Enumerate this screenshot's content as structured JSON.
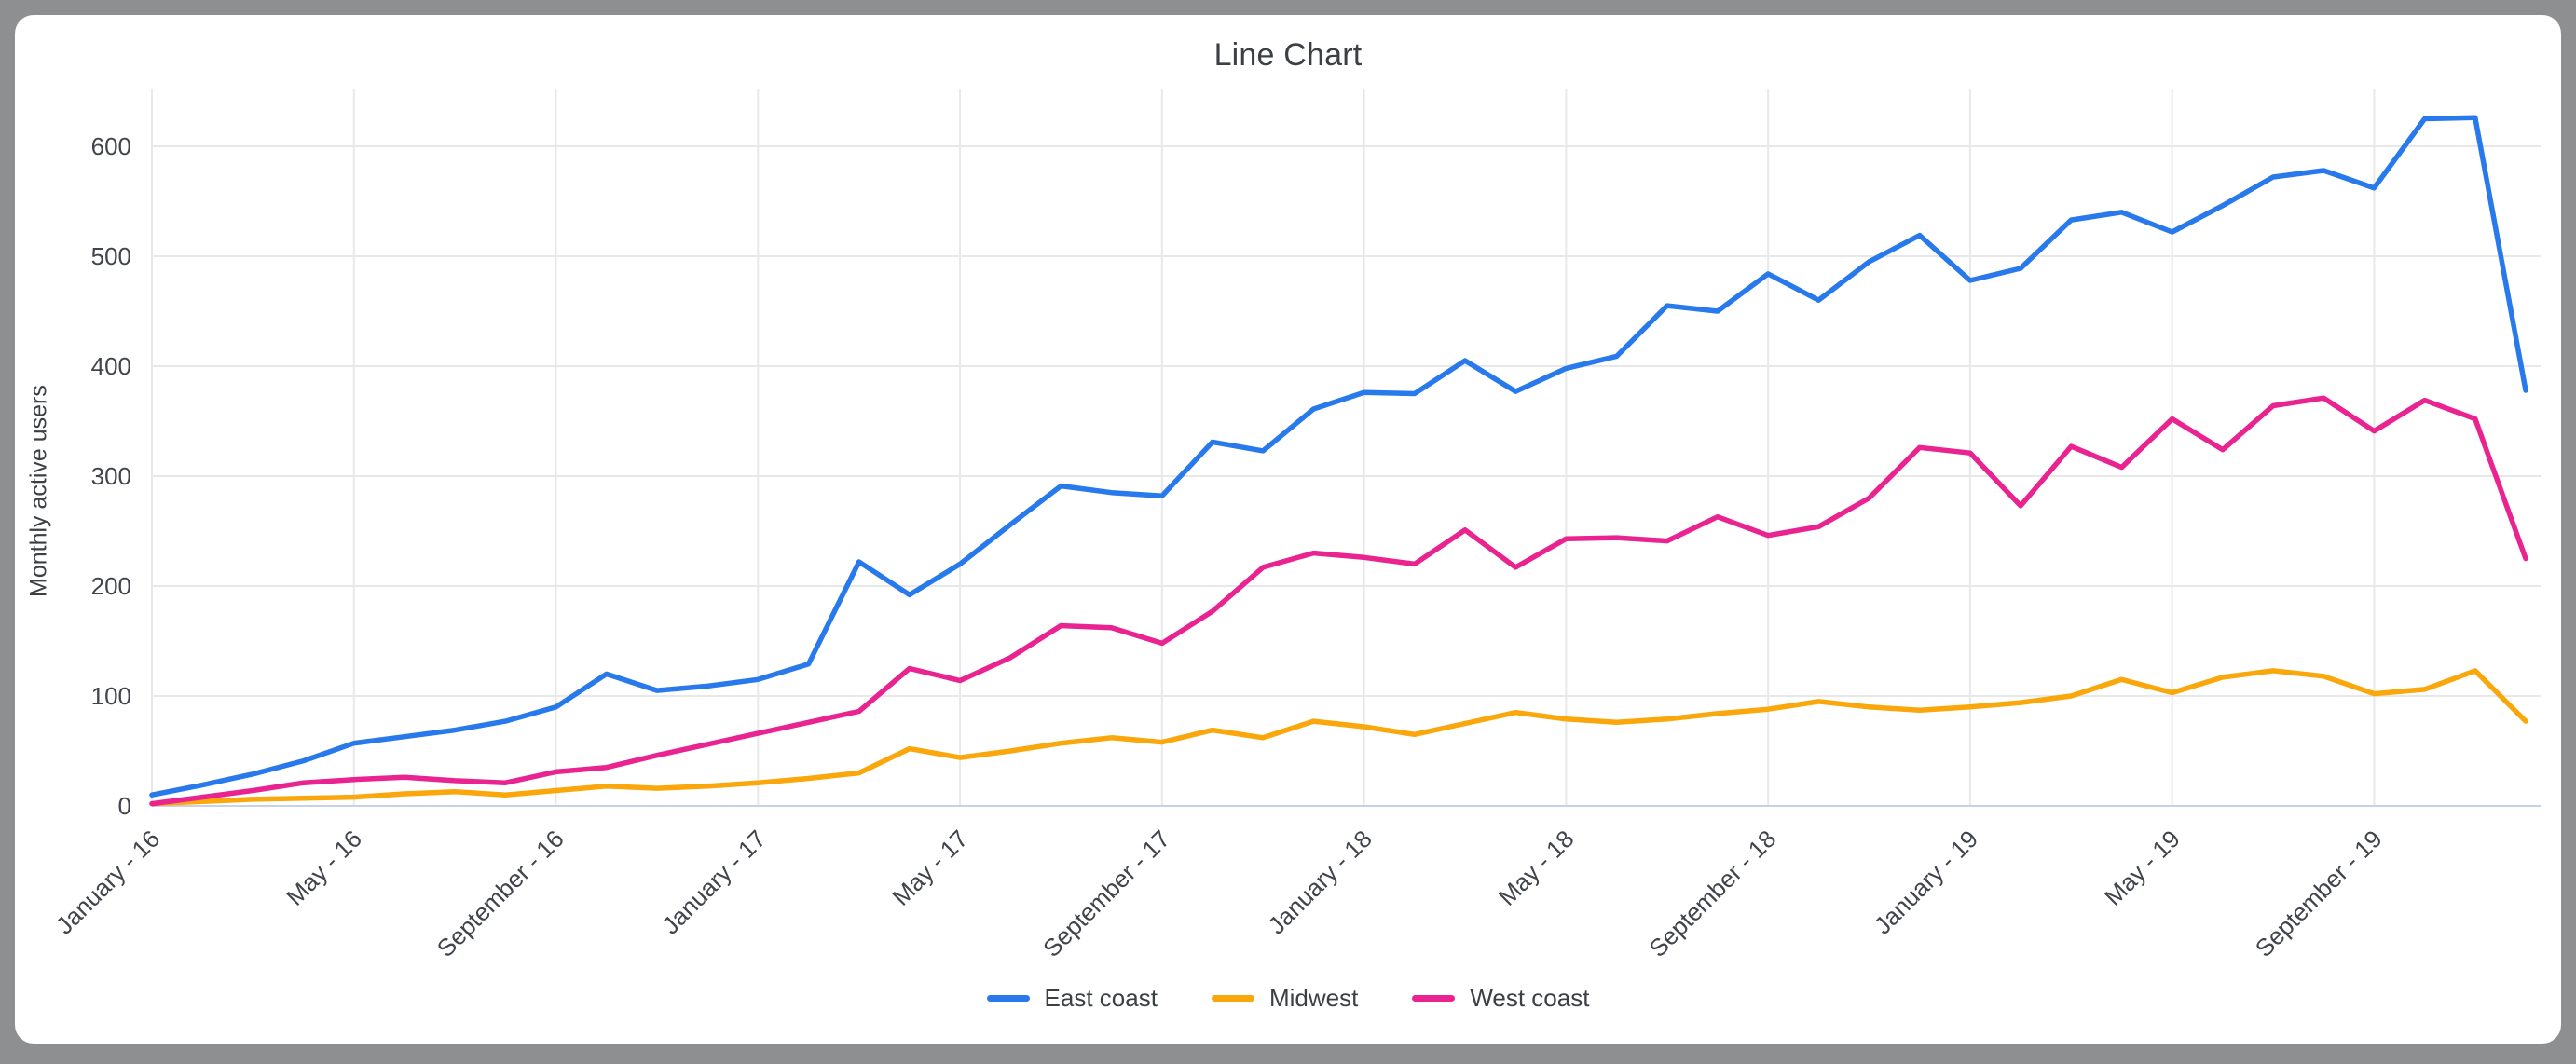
{
  "frame": {
    "background": "#8e8f91",
    "card_background": "#ffffff"
  },
  "chart_data": {
    "type": "line",
    "title": "Line Chart",
    "xlabel": "",
    "ylabel": "Monthly active users",
    "ylim": [
      0,
      650
    ],
    "yticks": [
      0,
      100,
      200,
      300,
      400,
      500,
      600
    ],
    "x_tick_every": 4,
    "grid": true,
    "legend_position": "bottom",
    "grid_color": "#e8e8e8",
    "baseline_color": "#c7d2e4",
    "tick_label_color": "#41454b",
    "title_color": "#3c4043",
    "categories": [
      "January - 16",
      "February - 16",
      "March - 16",
      "April - 16",
      "May - 16",
      "June - 16",
      "July - 16",
      "August - 16",
      "September - 16",
      "October - 16",
      "November - 16",
      "December - 16",
      "January - 17",
      "February - 17",
      "March - 17",
      "April - 17",
      "May - 17",
      "June - 17",
      "July - 17",
      "August - 17",
      "September - 17",
      "October - 17",
      "November - 17",
      "December - 17",
      "January - 18",
      "February - 18",
      "March - 18",
      "April - 18",
      "May - 18",
      "June - 18",
      "July - 18",
      "August - 18",
      "September - 18",
      "October - 18",
      "November - 18",
      "December - 18",
      "January - 19",
      "February - 19",
      "March - 19",
      "April - 19",
      "May - 19",
      "June - 19",
      "July - 19",
      "August - 19",
      "September - 19",
      "October - 19",
      "November - 19",
      "December - 19"
    ],
    "series": [
      {
        "name": "East coast",
        "color": "#2879ec",
        "values": [
          10,
          19,
          29,
          41,
          57,
          63,
          69,
          77,
          90,
          120,
          105,
          109,
          115,
          129,
          222,
          192,
          220,
          256,
          291,
          285,
          282,
          331,
          323,
          361,
          376,
          375,
          405,
          377,
          398,
          409,
          455,
          450,
          484,
          460,
          495,
          519,
          478,
          489,
          533,
          540,
          522,
          546,
          572,
          578,
          562,
          625,
          626,
          378
        ]
      },
      {
        "name": "Midwest",
        "color": "#f9a70b",
        "values": [
          2,
          4,
          6,
          7,
          8,
          11,
          13,
          10,
          14,
          18,
          16,
          18,
          21,
          25,
          30,
          52,
          44,
          50,
          57,
          62,
          58,
          69,
          62,
          77,
          72,
          65,
          75,
          85,
          79,
          76,
          79,
          84,
          88,
          95,
          90,
          87,
          90,
          94,
          100,
          115,
          103,
          117,
          123,
          118,
          102,
          106,
          123,
          77
        ]
      },
      {
        "name": "West coast",
        "color": "#e92390",
        "values": [
          2,
          8,
          14,
          21,
          24,
          26,
          23,
          21,
          31,
          35,
          46,
          56,
          66,
          76,
          86,
          125,
          114,
          135,
          164,
          162,
          148,
          177,
          217,
          230,
          226,
          220,
          251,
          217,
          243,
          244,
          241,
          263,
          246,
          254,
          280,
          326,
          321,
          273,
          327,
          308,
          352,
          324,
          364,
          371,
          341,
          369,
          352,
          225
        ]
      }
    ]
  }
}
